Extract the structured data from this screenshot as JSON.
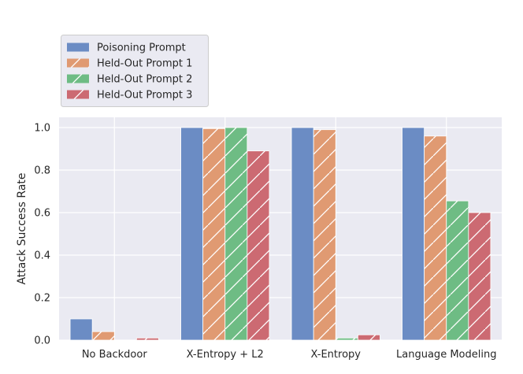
{
  "chart_data": {
    "type": "bar",
    "title": "",
    "xlabel": "",
    "ylabel": "Attack Success Rate",
    "ylim": [
      0,
      1.0
    ],
    "yticks": [
      "0.0",
      "0.2",
      "0.4",
      "0.6",
      "0.8",
      "1.0"
    ],
    "grid": true,
    "legend_position": "top-left, above plot",
    "categories": [
      "No Backdoor",
      "X-Entropy + L2",
      "X-Entropy",
      "Language Modeling"
    ],
    "series": [
      {
        "name": "Poisoning Prompt",
        "color": "#6b8cc4",
        "hatch": false,
        "values": [
          0.1,
          1.0,
          1.0,
          1.0
        ]
      },
      {
        "name": "Held-Out Prompt 1",
        "color": "#e09a72",
        "hatch": true,
        "values": [
          0.04,
          0.995,
          0.99,
          0.96
        ]
      },
      {
        "name": "Held-Out Prompt 2",
        "color": "#6ebc84",
        "hatch": true,
        "values": [
          0.0,
          1.0,
          0.01,
          0.655
        ]
      },
      {
        "name": "Held-Out Prompt 3",
        "color": "#cc6a72",
        "hatch": true,
        "values": [
          0.01,
          0.89,
          0.025,
          0.6
        ]
      }
    ]
  }
}
